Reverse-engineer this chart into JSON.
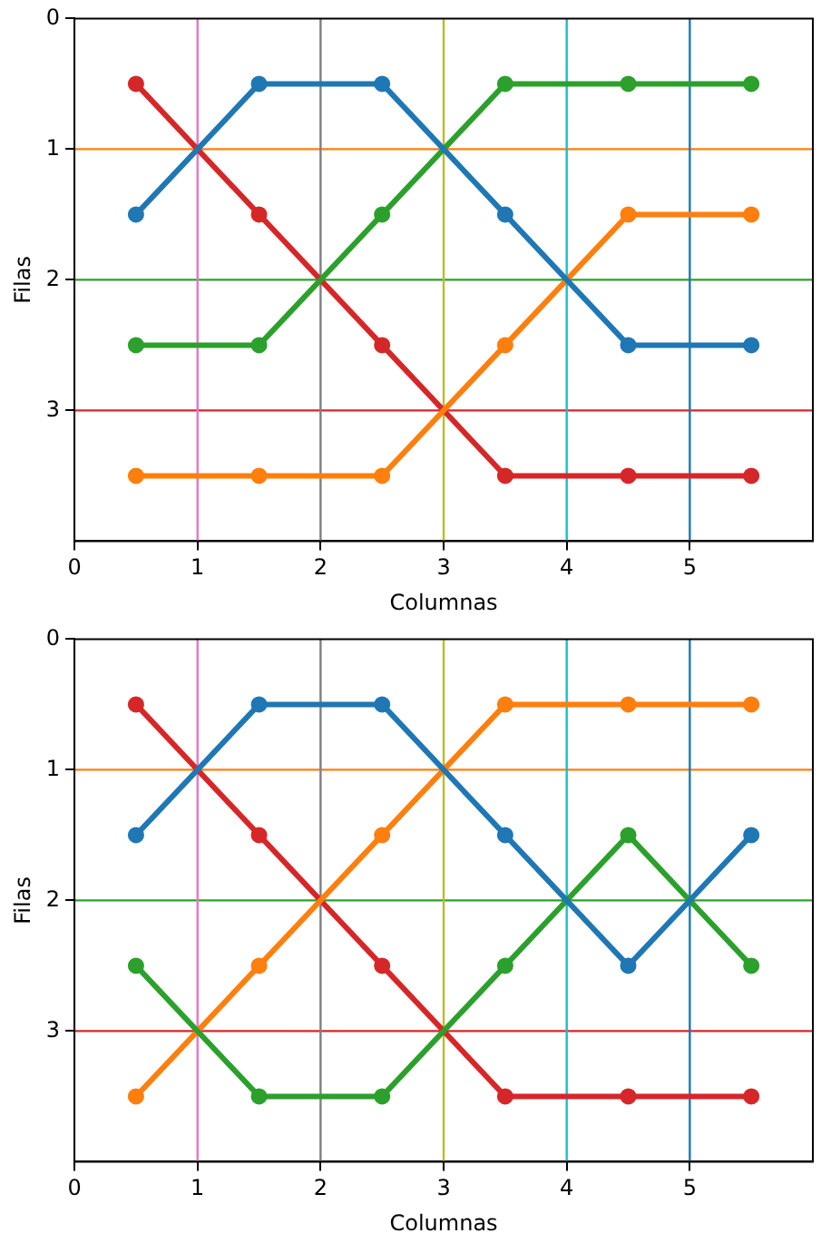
{
  "chart_data": [
    {
      "type": "line",
      "xlabel": "Columnas",
      "ylabel": "Filas",
      "x": [
        0.5,
        1.5,
        2.5,
        3.5,
        4.5,
        5.5
      ],
      "xlim": [
        0,
        6
      ],
      "xticks": [
        0,
        1,
        2,
        3,
        4,
        5
      ],
      "ylim": [
        4,
        0
      ],
      "yticks": [
        0,
        1,
        2,
        3
      ],
      "grid": false,
      "legend": false,
      "marker": "circle",
      "line_style": "solid",
      "series": [
        {
          "color": "#1f77b4",
          "values": [
            1.5,
            0.5,
            0.5,
            1.5,
            2.5,
            2.5
          ]
        },
        {
          "color": "#2ca02c",
          "values": [
            2.5,
            2.5,
            1.5,
            0.5,
            0.5,
            0.5
          ]
        },
        {
          "color": "#ff7f0e",
          "values": [
            3.5,
            3.5,
            3.5,
            2.5,
            1.5,
            1.5
          ]
        },
        {
          "color": "#d62728",
          "values": [
            0.5,
            1.5,
            2.5,
            3.5,
            3.5,
            3.5
          ]
        }
      ],
      "ref_lines": [
        {
          "axis": "y",
          "value": 1,
          "color": "#ff7f0e"
        },
        {
          "axis": "y",
          "value": 2,
          "color": "#2ca02c"
        },
        {
          "axis": "y",
          "value": 3,
          "color": "#d62728"
        },
        {
          "axis": "x",
          "value": 1,
          "color": "#e377c2"
        },
        {
          "axis": "x",
          "value": 2,
          "color": "#7f7f7f"
        },
        {
          "axis": "x",
          "value": 3,
          "color": "#bcbd22"
        },
        {
          "axis": "x",
          "value": 4,
          "color": "#17becf"
        },
        {
          "axis": "x",
          "value": 5,
          "color": "#1f77b4"
        }
      ]
    },
    {
      "type": "line",
      "xlabel": "Columnas",
      "ylabel": "Filas",
      "x": [
        0.5,
        1.5,
        2.5,
        3.5,
        4.5,
        5.5
      ],
      "xlim": [
        0,
        6
      ],
      "xticks": [
        0,
        1,
        2,
        3,
        4,
        5
      ],
      "ylim": [
        4,
        0
      ],
      "yticks": [
        0,
        1,
        2,
        3
      ],
      "grid": false,
      "legend": false,
      "marker": "circle",
      "line_style": "solid",
      "series": [
        {
          "color": "#1f77b4",
          "values": [
            1.5,
            0.5,
            0.5,
            1.5,
            2.5,
            1.5
          ]
        },
        {
          "color": "#2ca02c",
          "values": [
            2.5,
            3.5,
            3.5,
            2.5,
            1.5,
            2.5
          ]
        },
        {
          "color": "#ff7f0e",
          "values": [
            3.5,
            2.5,
            1.5,
            0.5,
            0.5,
            0.5
          ]
        },
        {
          "color": "#d62728",
          "values": [
            0.5,
            1.5,
            2.5,
            3.5,
            3.5,
            3.5
          ]
        }
      ],
      "ref_lines": [
        {
          "axis": "y",
          "value": 1,
          "color": "#ff7f0e"
        },
        {
          "axis": "y",
          "value": 2,
          "color": "#2ca02c"
        },
        {
          "axis": "y",
          "value": 3,
          "color": "#d62728"
        },
        {
          "axis": "x",
          "value": 1,
          "color": "#e377c2"
        },
        {
          "axis": "x",
          "value": 2,
          "color": "#7f7f7f"
        },
        {
          "axis": "x",
          "value": 3,
          "color": "#bcbd22"
        },
        {
          "axis": "x",
          "value": 4,
          "color": "#17becf"
        },
        {
          "axis": "x",
          "value": 5,
          "color": "#1f77b4"
        }
      ]
    }
  ]
}
